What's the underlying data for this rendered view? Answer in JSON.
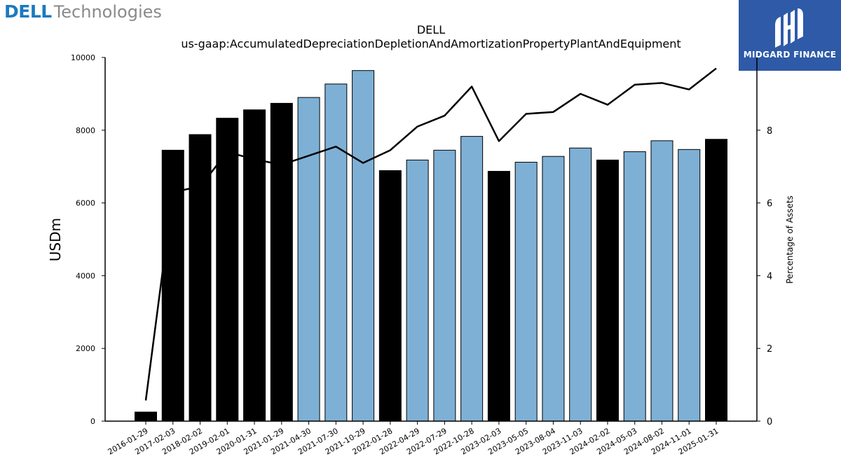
{
  "logos": {
    "left_brand": "DELL",
    "left_suffix": "Technologies",
    "right_name": "MIDGARD FINANCE"
  },
  "colors": {
    "bar_black": "#000000",
    "bar_blue": "#7eb0d5",
    "line": "#000000",
    "right_logo_bg": "#2e5aa8",
    "left_logo": "#1a7abf"
  },
  "chart_data": {
    "type": "bar",
    "title": "DELL",
    "subtitle": "us-gaap:AccumulatedDepreciationDepletionAndAmortizationPropertyPlantAndEquipment",
    "ylabel": "USDm",
    "y2label": "Percentage of Assets",
    "ylim": [
      0,
      10000
    ],
    "y2lim": [
      0,
      10
    ],
    "yticks": [
      "0",
      "2000",
      "4000",
      "6000",
      "8000",
      "10000"
    ],
    "y2ticks": [
      "0",
      "2",
      "4",
      "6",
      "8"
    ],
    "categories": [
      "2016-01-29",
      "2017-02-03",
      "2018-02-02",
      "2019-02-01",
      "2020-01-31",
      "2021-01-29",
      "2021-04-30",
      "2021-07-30",
      "2021-10-29",
      "2022-01-28",
      "2022-04-29",
      "2022-07-29",
      "2022-10-28",
      "2023-02-03",
      "2023-05-05",
      "2023-08-04",
      "2023-11-03",
      "2024-02-02",
      "2024-05-03",
      "2024-08-02",
      "2024-11-01",
      "2025-01-31"
    ],
    "series": [
      {
        "type": "bar",
        "values": [
          250,
          7450,
          7880,
          8330,
          8560,
          8740,
          8900,
          9270,
          9640,
          6890,
          7180,
          7450,
          7830,
          6870,
          7120,
          7280,
          7510,
          7180,
          7410,
          7710,
          7470,
          7750
        ],
        "quarterly": [
          false,
          false,
          false,
          false,
          false,
          false,
          true,
          true,
          true,
          false,
          true,
          true,
          true,
          false,
          true,
          true,
          true,
          false,
          true,
          true,
          true,
          false
        ]
      },
      {
        "type": "line",
        "axis": "right",
        "values": [
          0.57,
          6.3,
          6.45,
          7.4,
          7.2,
          7.05,
          7.3,
          7.55,
          7.1,
          7.45,
          8.1,
          8.4,
          9.2,
          7.7,
          8.45,
          8.5,
          9.0,
          8.7,
          9.25,
          9.3,
          9.12,
          9.7
        ]
      }
    ]
  }
}
